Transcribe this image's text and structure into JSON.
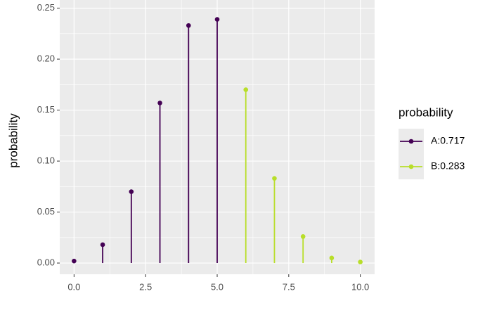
{
  "chart_data": {
    "type": "lollipop",
    "y_label": "probability",
    "legend_title": "probability",
    "legend_position": "right",
    "grid": true,
    "xlim": [
      -0.5,
      10.5
    ],
    "ylim": [
      -0.011,
      0.258
    ],
    "xticks": [
      {
        "value": 0,
        "label": "0.0"
      },
      2.5,
      {
        "value": 5,
        "label": "5.0"
      },
      7.5,
      {
        "value": 10,
        "label": "10.0"
      }
    ],
    "yticks": [
      {
        "value": 0,
        "label": "0.00"
      },
      0.05,
      {
        "value": 0.1,
        "label": "0.10"
      },
      0.15,
      {
        "value": 0.2,
        "label": "0.20"
      },
      0.25
    ],
    "series": [
      {
        "name": "A:0.717",
        "color": "#440154",
        "x": [
          0,
          1,
          2,
          3,
          4,
          5
        ],
        "values": [
          0.002,
          0.018,
          0.07,
          0.157,
          0.233,
          0.239
        ]
      },
      {
        "name": "B:0.283",
        "color": "#b8de29",
        "x": [
          6,
          7,
          8,
          9,
          10
        ],
        "values": [
          0.17,
          0.083,
          0.026,
          0.005,
          0.001
        ]
      }
    ]
  }
}
